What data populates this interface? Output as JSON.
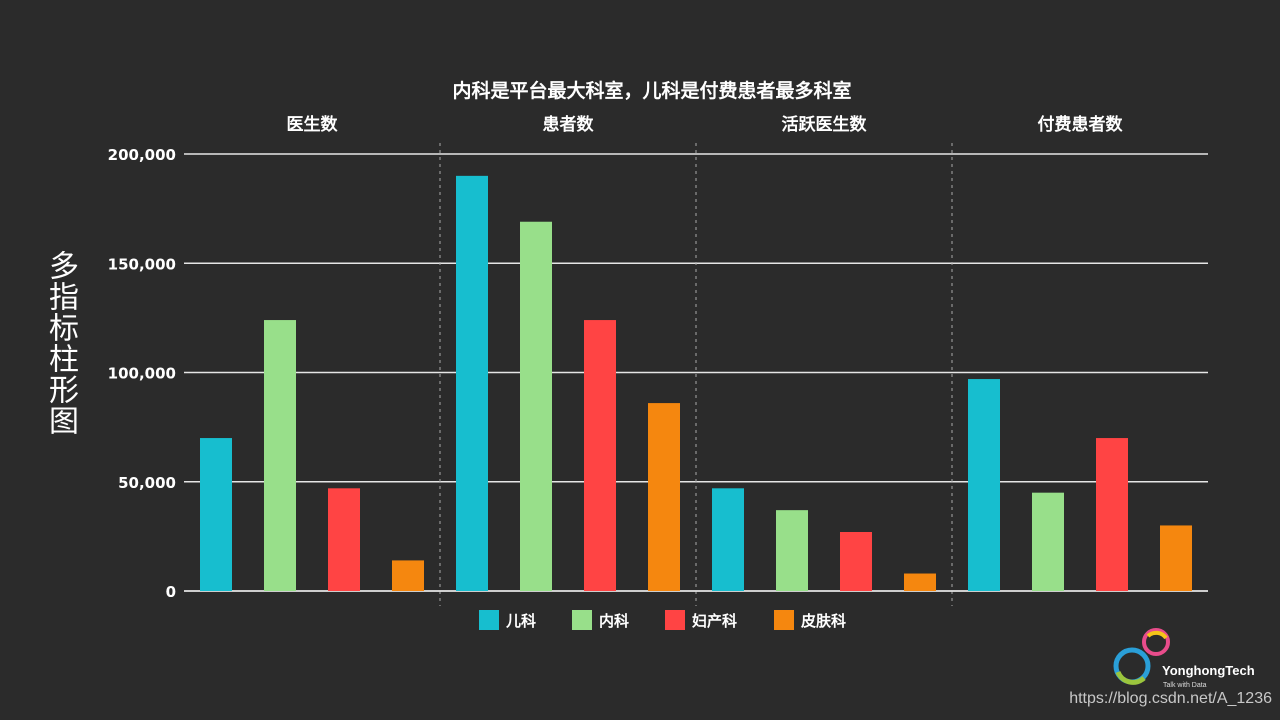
{
  "side_title": "多指标柱形图",
  "chart_data": {
    "type": "bar",
    "title": "内科是平台最大科室，儿科是付费患者最多科室",
    "panels": [
      "医生数",
      "患者数",
      "活跃医生数",
      "付费患者数"
    ],
    "series": [
      {
        "name": "儿科",
        "color": "#17becf",
        "values": [
          70000,
          190000,
          47000,
          97000
        ]
      },
      {
        "name": "内科",
        "color": "#98df8a",
        "values": [
          124000,
          169000,
          37000,
          45000
        ]
      },
      {
        "name": "妇产科",
        "color": "#ff4444",
        "values": [
          47000,
          124000,
          27000,
          70000
        ]
      },
      {
        "name": "皮肤科",
        "color": "#f5870f",
        "values": [
          14000,
          86000,
          8000,
          30000
        ]
      }
    ],
    "ylim": [
      0,
      200000
    ],
    "yticks": [
      0,
      50000,
      100000,
      150000,
      200000
    ],
    "ytick_labels": [
      "0",
      "50,000",
      "100,000",
      "150,000",
      "200,000"
    ],
    "grid": true,
    "legend_position": "bottom-center"
  },
  "logo": {
    "name": "YonghongTech",
    "tagline": "Talk with Data"
  },
  "watermark": "https://blog.csdn.net/A_1236"
}
